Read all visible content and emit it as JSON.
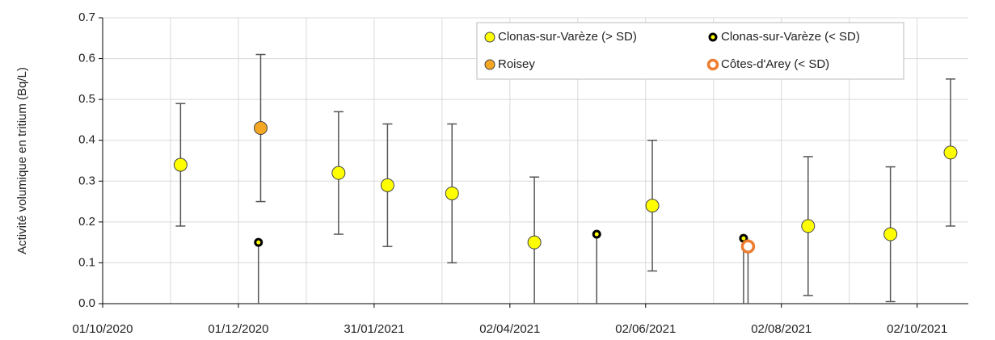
{
  "chart_data": {
    "type": "scatter",
    "y_label": "Activité volumique en tritium (Bq/L)",
    "xlim": [
      "2020-10-01",
      "2021-10-25"
    ],
    "xticks": [
      {
        "value": "2020-10-01",
        "label": "01/10/2020"
      },
      {
        "value": "2020-12-01",
        "label": "01/12/2020"
      },
      {
        "value": "2021-01-31",
        "label": "31/01/2021"
      },
      {
        "value": "2021-04-02",
        "label": "02/04/2021"
      },
      {
        "value": "2021-06-02",
        "label": "02/06/2021"
      },
      {
        "value": "2021-08-02",
        "label": "02/08/2021"
      },
      {
        "value": "2021-10-02",
        "label": "02/10/2021"
      }
    ],
    "ylim": [
      0,
      0.7
    ],
    "yticks": [
      {
        "value": 0,
        "label": "0.0"
      },
      0.1,
      0.2,
      0.3,
      0.4,
      0.5,
      0.6,
      0.7
    ],
    "grid": true,
    "legend": "top-right",
    "series": [
      {
        "name": "Clonas-sur-Varèze (> SD)",
        "color": "#ffff00",
        "edge": "#444444",
        "marker": "filled",
        "x": [
          "2020-11-05",
          "2021-01-15",
          "2021-02-06",
          "2021-03-07",
          "2021-04-13",
          "2021-06-05",
          "2021-08-14",
          "2021-09-20",
          "2021-10-17"
        ],
        "values": [
          0.34,
          0.32,
          0.29,
          0.27,
          0.15,
          0.24,
          0.19,
          0.17,
          0.37
        ],
        "errors": [
          0.15,
          0.15,
          0.15,
          0.17,
          0.16,
          0.16,
          0.17,
          0.165,
          0.18
        ],
        "error_direction": "both"
      },
      {
        "name": "Clonas-sur-Varèze (< SD)",
        "color": "#ffff00",
        "edge": "#000000",
        "marker": "small",
        "x": [
          "2020-12-10",
          "2021-05-11",
          "2021-07-16"
        ],
        "values": [
          0.15,
          0.17,
          0.16
        ],
        "errors": [
          0.15,
          0.17,
          0.16
        ],
        "error_direction": "minus"
      },
      {
        "name": "Roisey",
        "color": "#f5a623",
        "edge": "#444444",
        "marker": "filled",
        "x": [
          "2020-12-11"
        ],
        "values": [
          0.43
        ],
        "errors": [
          0.18
        ],
        "error_direction": "both"
      },
      {
        "name": "Côtes-d'Arey (< SD)",
        "color": "#ffffff",
        "edge": "#ed7d31",
        "marker": "ring",
        "x": [
          "2021-07-18"
        ],
        "values": [
          0.14
        ],
        "errors": [
          0.14
        ],
        "error_direction": "minus"
      }
    ]
  }
}
